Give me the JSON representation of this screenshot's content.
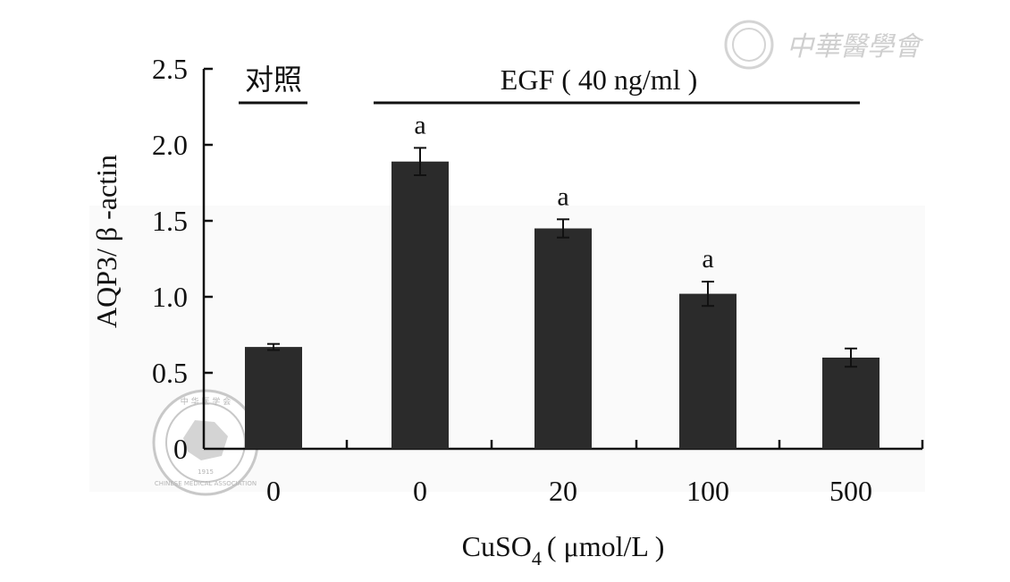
{
  "watermark": {
    "top_right_text": "中華醫學會",
    "seal_text": "CHINESE MEDICAL ASSOCIATION",
    "seal_year": "1915",
    "seal_top_chars": "中 华 医 学 会"
  },
  "chart_data": {
    "type": "bar",
    "ylabel": "AQP3/ β -actin",
    "xlabel_prefix": "CuSO",
    "xlabel_subscript": "4",
    "xlabel_suffix": "( μmol/L )",
    "categories": [
      "0",
      "0",
      "20",
      "100",
      "500"
    ],
    "values": [
      0.67,
      1.89,
      1.45,
      1.02,
      0.6
    ],
    "errors": [
      0.02,
      0.09,
      0.06,
      0.08,
      0.06
    ],
    "significance": [
      "",
      "a",
      "a",
      "a",
      ""
    ],
    "ylim": [
      0,
      2.5
    ],
    "yticks": [
      "0",
      "0.5",
      "1.0",
      "1.5",
      "2.0",
      "2.5"
    ],
    "group_labels": {
      "control": "对照",
      "treatment": "EGF ( 40 ng/ml )"
    },
    "bar_color": "#2b2b2b"
  }
}
